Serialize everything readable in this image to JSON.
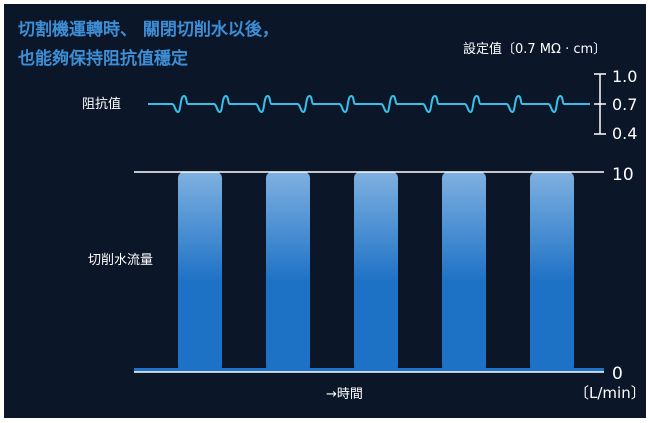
{
  "title_lines": [
    "切割機運轉時、 關閉切削水以後，",
    "也能夠保持阻抗值穩定"
  ],
  "setpoint_label": "設定值〔0.7 MΩ · cm〕",
  "colors": {
    "background": "#0b1629",
    "title": "#3e8ed6",
    "wave": "#39c0e8",
    "bar_top": "#7fb0e0",
    "bar_bottom": "#1e72c6",
    "axis": "#ffffff"
  },
  "chart_data": [
    {
      "type": "line",
      "series": [
        {
          "name": "阻抗值",
          "values": [
            0.7,
            0.7,
            0.7,
            0.7,
            0.7,
            0.7,
            0.7,
            0.7,
            0.7,
            0.7,
            0.7
          ]
        }
      ],
      "ylim": [
        0.4,
        1.0
      ],
      "ytick_labels": [
        "1.0",
        "0.7",
        "0.4"
      ]
    },
    {
      "type": "area",
      "series": [
        {
          "name": "切削水流量",
          "values": [
            10,
            0,
            10,
            0,
            10,
            0,
            10,
            0,
            10,
            0
          ]
        }
      ],
      "xlabel": "→時間",
      "ylim": [
        0,
        10
      ],
      "ytick_labels": [
        "10",
        "0"
      ],
      "unit": "〔L/min〕"
    }
  ]
}
